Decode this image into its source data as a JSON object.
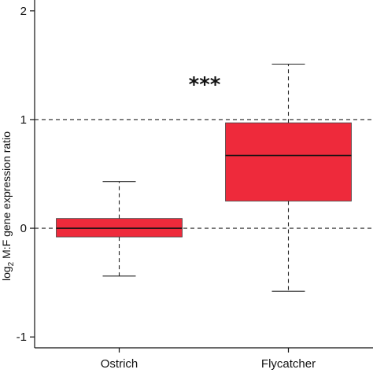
{
  "chart_data": {
    "type": "box",
    "categories": [
      "Ostrich",
      "Flycatcher"
    ],
    "boxes": [
      {
        "category": "Ostrich",
        "whisker_low": -0.44,
        "q1": -0.08,
        "median": 0.0,
        "q3": 0.09,
        "whisker_high": 0.43
      },
      {
        "category": "Flycatcher",
        "whisker_low": -0.58,
        "q1": 0.25,
        "median": 0.67,
        "q3": 0.97,
        "whisker_high": 1.51
      }
    ],
    "ylim": [
      -1.1,
      2.1
    ],
    "yticks": [
      -1,
      0,
      1,
      2
    ],
    "ytick_labels": [
      "-1",
      "0",
      "1",
      "2"
    ],
    "ylabel": "log2 M:F gene expression ratio",
    "ylabel_parts": {
      "before": "log",
      "sub": "2",
      "after": " M:F gene expression ratio"
    },
    "reference_lines": [
      0,
      1
    ],
    "annotation": "***",
    "box_color": "#ee2a3b",
    "grid": false
  }
}
